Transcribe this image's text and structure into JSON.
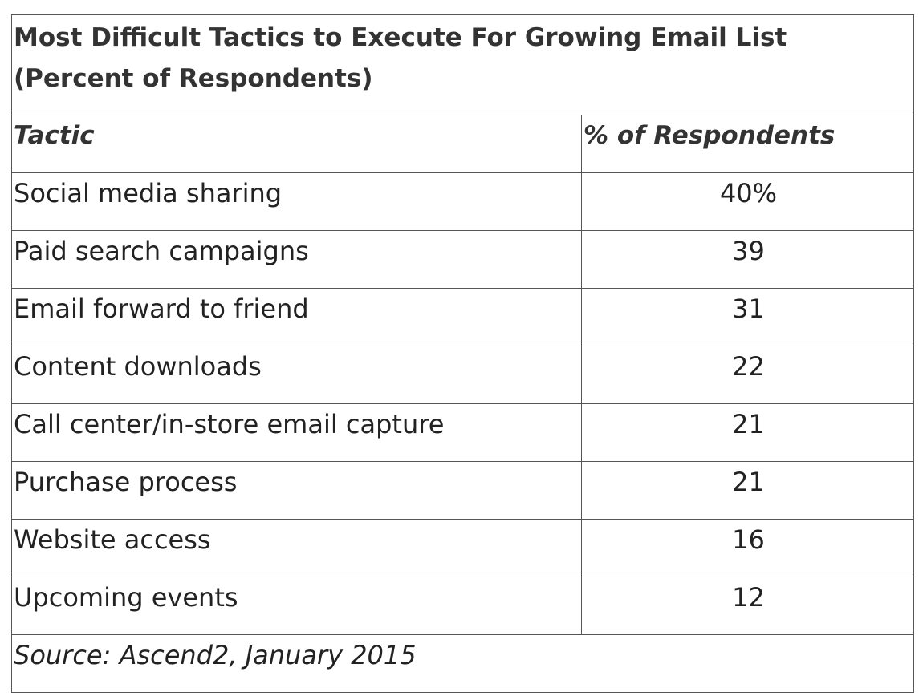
{
  "chart_data": {
    "type": "table",
    "title": "Most Difficult Tactics to Execute For Growing Email List (Percent of Respondents)",
    "columns": [
      "Tactic",
      "% of Respondents"
    ],
    "rows": [
      {
        "tactic": "Social media sharing",
        "value": "40%"
      },
      {
        "tactic": "Paid search campaigns",
        "value": "39"
      },
      {
        "tactic": "Email forward to friend",
        "value": "31"
      },
      {
        "tactic": "Content downloads",
        "value": "22"
      },
      {
        "tactic": "Call center/in-store email capture",
        "value": "21"
      },
      {
        "tactic": "Purchase process",
        "value": "21"
      },
      {
        "tactic": "Website access",
        "value": "16"
      },
      {
        "tactic": "Upcoming events",
        "value": "12"
      }
    ],
    "source": "Source: Ascend2, January 2015"
  }
}
